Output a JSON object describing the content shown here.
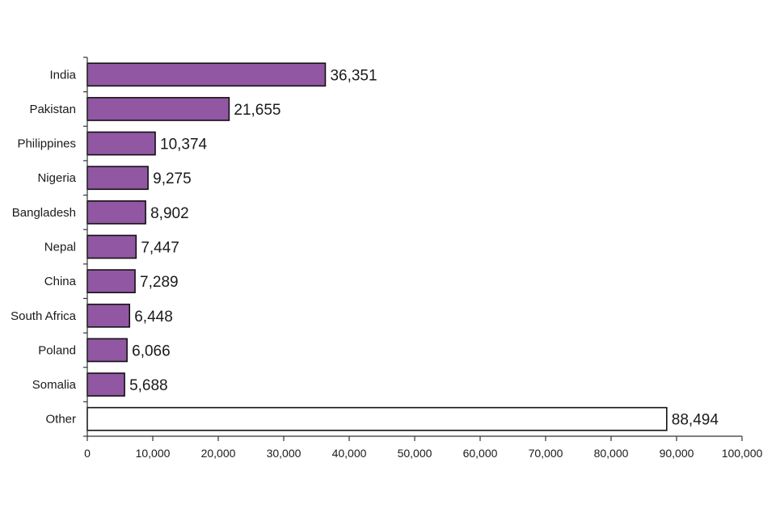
{
  "chart_data": {
    "type": "bar",
    "orientation": "horizontal",
    "title": "",
    "xlabel": "",
    "ylabel": "",
    "categories": [
      "India",
      "Pakistan",
      "Philippines",
      "Nigeria",
      "Bangladesh",
      "Nepal",
      "China",
      "South Africa",
      "Poland",
      "Somalia",
      "Other"
    ],
    "values": [
      36351,
      21655,
      10374,
      9275,
      8902,
      7447,
      7289,
      6448,
      6066,
      5688,
      88494
    ],
    "value_labels": [
      "36,351",
      "21,655",
      "10,374",
      "9,275",
      "8,902",
      "7,447",
      "7,289",
      "6,448",
      "6,066",
      "5,688",
      "88,494"
    ],
    "bar_colors": [
      "#9157a3",
      "#9157a3",
      "#9157a3",
      "#9157a3",
      "#9157a3",
      "#9157a3",
      "#9157a3",
      "#9157a3",
      "#9157a3",
      "#9157a3",
      "#ffffff"
    ],
    "xlim": [
      0,
      100000
    ],
    "x_ticks": [
      0,
      10000,
      20000,
      30000,
      40000,
      50000,
      60000,
      70000,
      80000,
      90000,
      100000
    ],
    "x_tick_labels": [
      "0",
      "10,000",
      "20,000",
      "30,000",
      "40,000",
      "50,000",
      "60,000",
      "70,000",
      "80,000",
      "90,000",
      "100,000"
    ],
    "grid": false,
    "legend": "none"
  }
}
